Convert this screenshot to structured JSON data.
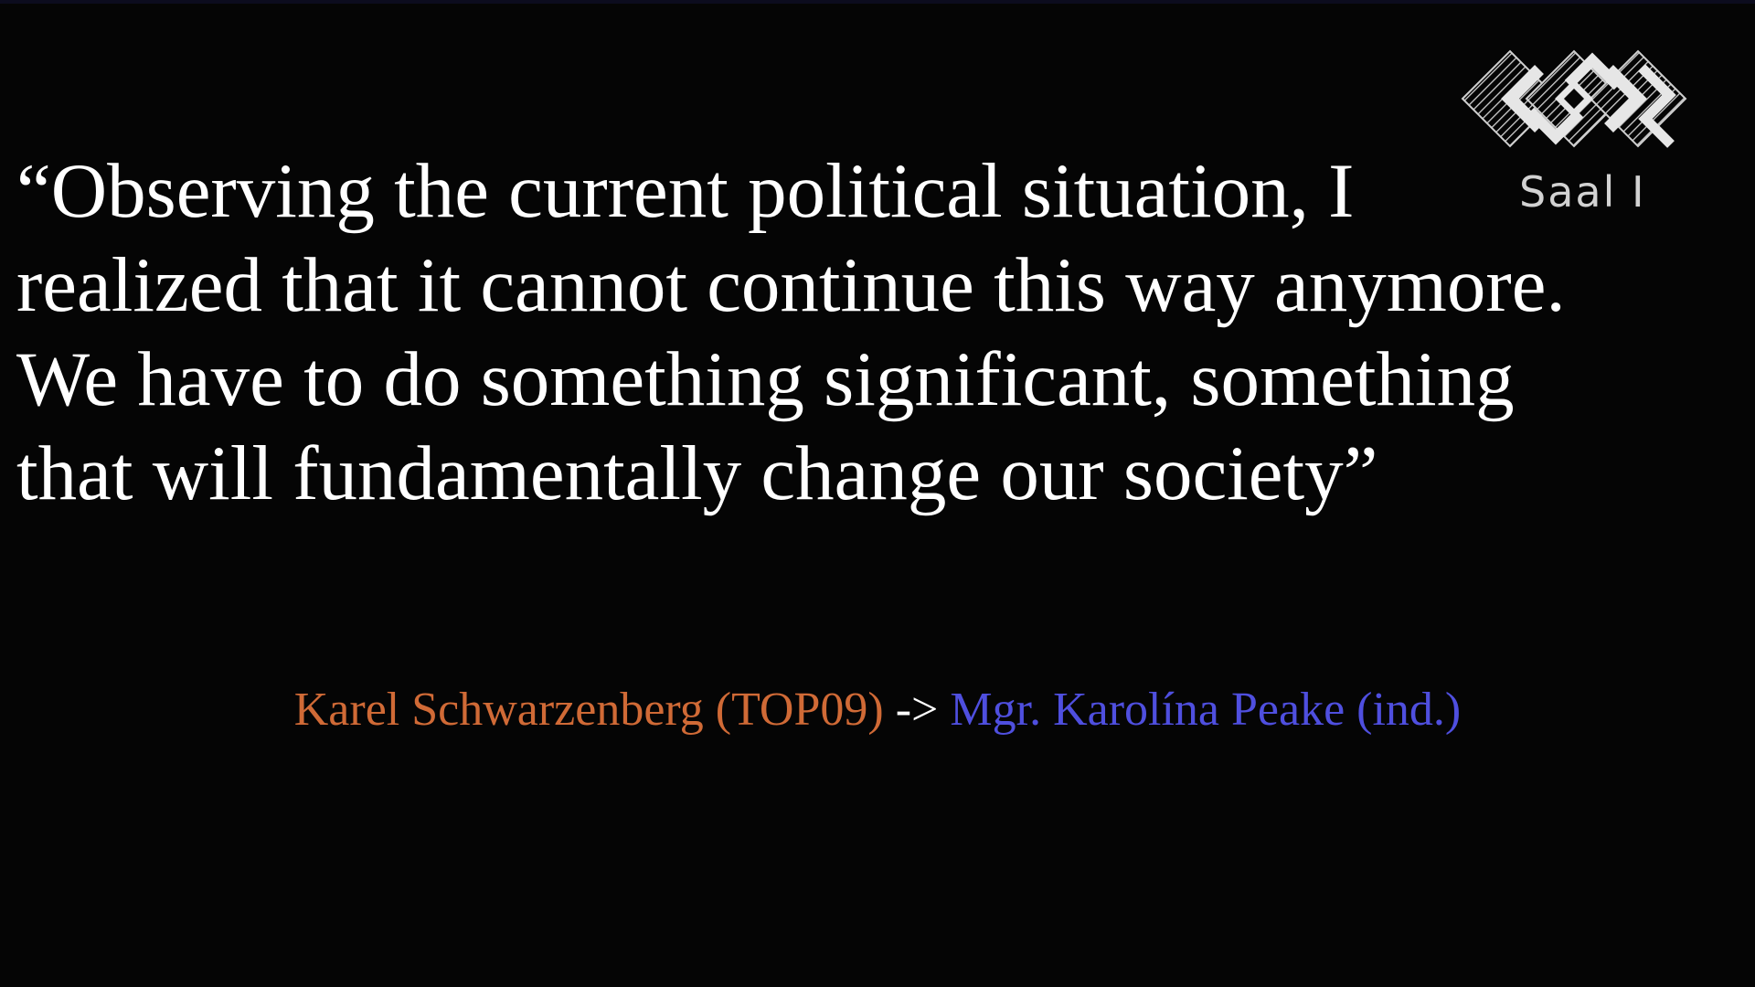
{
  "quote": {
    "lines": [
      "“Observing the current political situation, I",
      "realized that it cannot continue this way anymore.",
      "We have to do something significant, something",
      "that will fundamentally change our society”"
    ]
  },
  "attribution": {
    "from": "Karel Schwarzenberg (TOP09)",
    "arrow": " -> ",
    "to": "Mgr. Karolína Peake (ind.)",
    "colors": {
      "from": "#d06a36",
      "arrow": "#ffffff",
      "to": "#4f4fdf"
    }
  },
  "logo": {
    "icon": "congress-logo-icon",
    "label": "Saal I",
    "color": "#d2d2d2"
  },
  "background": "#050505"
}
